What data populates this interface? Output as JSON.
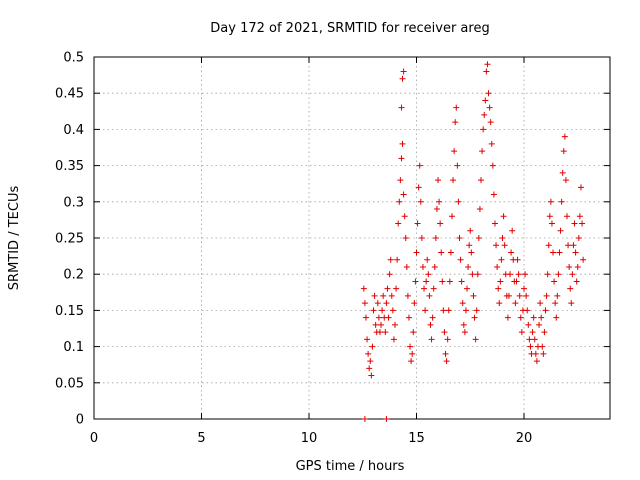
{
  "chart_data": {
    "type": "scatter",
    "title": "Day 172 of 2021, SRMTID for receiver areg",
    "xlabel": "GPS time / hours",
    "ylabel": "SRMTID / TECUs",
    "xlim": [
      0,
      24
    ],
    "ylim": [
      0,
      0.5
    ],
    "xticks": [
      0,
      5,
      10,
      15,
      20
    ],
    "yticks": [
      0,
      0.05,
      0.1,
      0.15,
      0.2,
      0.25,
      0.3,
      0.35,
      0.4,
      0.45,
      0.5
    ],
    "xtick_labels": [
      "0",
      "5",
      "10",
      "15",
      "20"
    ],
    "ytick_labels": [
      "0",
      "0.05",
      "0.1",
      "0.15",
      "0.2",
      "0.25",
      "0.3",
      "0.35",
      "0.4",
      "0.45",
      "0.5"
    ],
    "grid": true,
    "marker": "+",
    "color": "#e00000",
    "series": [
      {
        "name": "SRMTID",
        "points": [
          [
            12.6,
            0.0
          ],
          [
            13.6,
            0.0
          ],
          [
            12.55,
            0.18
          ],
          [
            12.6,
            0.16
          ],
          [
            12.65,
            0.14
          ],
          [
            12.7,
            0.11
          ],
          [
            12.75,
            0.09
          ],
          [
            12.8,
            0.07
          ],
          [
            12.85,
            0.08
          ],
          [
            12.9,
            0.06
          ],
          [
            12.95,
            0.1
          ],
          [
            13.0,
            0.15
          ],
          [
            13.05,
            0.17
          ],
          [
            13.1,
            0.13
          ],
          [
            13.15,
            0.12
          ],
          [
            13.2,
            0.16
          ],
          [
            13.25,
            0.14
          ],
          [
            13.3,
            0.12
          ],
          [
            13.35,
            0.13
          ],
          [
            13.4,
            0.15
          ],
          [
            13.45,
            0.17
          ],
          [
            13.5,
            0.14
          ],
          [
            13.55,
            0.12
          ],
          [
            13.6,
            0.16
          ],
          [
            13.65,
            0.18
          ],
          [
            13.7,
            0.14
          ],
          [
            13.75,
            0.2
          ],
          [
            13.8,
            0.22
          ],
          [
            13.85,
            0.17
          ],
          [
            13.9,
            0.15
          ],
          [
            13.95,
            0.11
          ],
          [
            14.0,
            0.13
          ],
          [
            14.05,
            0.18
          ],
          [
            14.1,
            0.22
          ],
          [
            14.15,
            0.27
          ],
          [
            14.2,
            0.3
          ],
          [
            14.25,
            0.33
          ],
          [
            14.3,
            0.36
          ],
          [
            14.35,
            0.38
          ],
          [
            14.3,
            0.43
          ],
          [
            14.35,
            0.47
          ],
          [
            14.4,
            0.48
          ],
          [
            14.4,
            0.31
          ],
          [
            14.45,
            0.28
          ],
          [
            14.5,
            0.25
          ],
          [
            14.55,
            0.21
          ],
          [
            14.6,
            0.17
          ],
          [
            14.65,
            0.14
          ],
          [
            14.7,
            0.1
          ],
          [
            14.75,
            0.08
          ],
          [
            14.8,
            0.09
          ],
          [
            14.85,
            0.12
          ],
          [
            14.9,
            0.16
          ],
          [
            14.95,
            0.19
          ],
          [
            15.0,
            0.23
          ],
          [
            15.05,
            0.27
          ],
          [
            15.1,
            0.32
          ],
          [
            15.15,
            0.35
          ],
          [
            15.2,
            0.3
          ],
          [
            15.25,
            0.25
          ],
          [
            15.3,
            0.21
          ],
          [
            15.35,
            0.18
          ],
          [
            15.4,
            0.15
          ],
          [
            15.45,
            0.19
          ],
          [
            15.5,
            0.22
          ],
          [
            15.55,
            0.2
          ],
          [
            15.6,
            0.17
          ],
          [
            15.65,
            0.13
          ],
          [
            15.7,
            0.11
          ],
          [
            15.75,
            0.14
          ],
          [
            15.8,
            0.18
          ],
          [
            15.85,
            0.21
          ],
          [
            15.9,
            0.25
          ],
          [
            15.95,
            0.29
          ],
          [
            16.0,
            0.33
          ],
          [
            16.05,
            0.3
          ],
          [
            16.1,
            0.27
          ],
          [
            16.15,
            0.23
          ],
          [
            16.2,
            0.19
          ],
          [
            16.25,
            0.15
          ],
          [
            16.3,
            0.12
          ],
          [
            16.35,
            0.09
          ],
          [
            16.4,
            0.08
          ],
          [
            16.45,
            0.11
          ],
          [
            16.5,
            0.15
          ],
          [
            16.55,
            0.19
          ],
          [
            16.6,
            0.23
          ],
          [
            16.65,
            0.28
          ],
          [
            16.7,
            0.33
          ],
          [
            16.75,
            0.37
          ],
          [
            16.8,
            0.41
          ],
          [
            16.85,
            0.43
          ],
          [
            16.9,
            0.35
          ],
          [
            16.95,
            0.3
          ],
          [
            17.0,
            0.25
          ],
          [
            17.05,
            0.22
          ],
          [
            17.1,
            0.19
          ],
          [
            17.15,
            0.16
          ],
          [
            17.2,
            0.13
          ],
          [
            17.25,
            0.12
          ],
          [
            17.3,
            0.15
          ],
          [
            17.35,
            0.18
          ],
          [
            17.4,
            0.21
          ],
          [
            17.45,
            0.24
          ],
          [
            17.5,
            0.26
          ],
          [
            17.55,
            0.23
          ],
          [
            17.6,
            0.2
          ],
          [
            17.65,
            0.17
          ],
          [
            17.7,
            0.14
          ],
          [
            17.75,
            0.11
          ],
          [
            17.8,
            0.15
          ],
          [
            17.85,
            0.2
          ],
          [
            17.9,
            0.25
          ],
          [
            17.95,
            0.29
          ],
          [
            18.0,
            0.33
          ],
          [
            18.05,
            0.37
          ],
          [
            18.1,
            0.4
          ],
          [
            18.15,
            0.42
          ],
          [
            18.2,
            0.44
          ],
          [
            18.25,
            0.48
          ],
          [
            18.3,
            0.49
          ],
          [
            18.35,
            0.45
          ],
          [
            18.4,
            0.43
          ],
          [
            18.45,
            0.41
          ],
          [
            18.5,
            0.38
          ],
          [
            18.55,
            0.35
          ],
          [
            18.6,
            0.31
          ],
          [
            18.65,
            0.27
          ],
          [
            18.7,
            0.24
          ],
          [
            18.75,
            0.21
          ],
          [
            18.8,
            0.18
          ],
          [
            18.85,
            0.16
          ],
          [
            18.9,
            0.19
          ],
          [
            18.95,
            0.22
          ],
          [
            19.0,
            0.25
          ],
          [
            19.05,
            0.28
          ],
          [
            19.1,
            0.24
          ],
          [
            19.15,
            0.2
          ],
          [
            19.2,
            0.17
          ],
          [
            19.25,
            0.14
          ],
          [
            19.3,
            0.17
          ],
          [
            19.35,
            0.2
          ],
          [
            19.4,
            0.23
          ],
          [
            19.45,
            0.26
          ],
          [
            19.5,
            0.22
          ],
          [
            19.55,
            0.19
          ],
          [
            19.6,
            0.16
          ],
          [
            19.65,
            0.19
          ],
          [
            19.7,
            0.22
          ],
          [
            19.75,
            0.2
          ],
          [
            19.8,
            0.17
          ],
          [
            19.85,
            0.14
          ],
          [
            19.9,
            0.12
          ],
          [
            19.95,
            0.15
          ],
          [
            20.0,
            0.18
          ],
          [
            20.05,
            0.2
          ],
          [
            20.1,
            0.17
          ],
          [
            20.15,
            0.15
          ],
          [
            20.2,
            0.13
          ],
          [
            20.25,
            0.11
          ],
          [
            20.3,
            0.1
          ],
          [
            20.35,
            0.09
          ],
          [
            20.4,
            0.12
          ],
          [
            20.45,
            0.14
          ],
          [
            20.5,
            0.11
          ],
          [
            20.55,
            0.09
          ],
          [
            20.6,
            0.08
          ],
          [
            20.65,
            0.1
          ],
          [
            20.7,
            0.13
          ],
          [
            20.75,
            0.16
          ],
          [
            20.8,
            0.14
          ],
          [
            20.85,
            0.1
          ],
          [
            20.9,
            0.09
          ],
          [
            20.95,
            0.12
          ],
          [
            21.0,
            0.15
          ],
          [
            21.05,
            0.17
          ],
          [
            21.1,
            0.2
          ],
          [
            21.15,
            0.24
          ],
          [
            21.2,
            0.28
          ],
          [
            21.25,
            0.3
          ],
          [
            21.3,
            0.27
          ],
          [
            21.35,
            0.23
          ],
          [
            21.4,
            0.19
          ],
          [
            21.45,
            0.16
          ],
          [
            21.5,
            0.14
          ],
          [
            21.55,
            0.17
          ],
          [
            21.6,
            0.2
          ],
          [
            21.65,
            0.23
          ],
          [
            21.7,
            0.26
          ],
          [
            21.75,
            0.3
          ],
          [
            21.8,
            0.34
          ],
          [
            21.85,
            0.37
          ],
          [
            21.9,
            0.39
          ],
          [
            21.95,
            0.33
          ],
          [
            22.0,
            0.28
          ],
          [
            22.05,
            0.24
          ],
          [
            22.1,
            0.21
          ],
          [
            22.15,
            0.18
          ],
          [
            22.2,
            0.16
          ],
          [
            22.25,
            0.2
          ],
          [
            22.3,
            0.24
          ],
          [
            22.35,
            0.27
          ],
          [
            22.4,
            0.23
          ],
          [
            22.45,
            0.19
          ],
          [
            22.5,
            0.21
          ],
          [
            22.55,
            0.25
          ],
          [
            22.6,
            0.28
          ],
          [
            22.65,
            0.32
          ],
          [
            22.7,
            0.27
          ],
          [
            22.75,
            0.22
          ]
        ]
      }
    ]
  }
}
